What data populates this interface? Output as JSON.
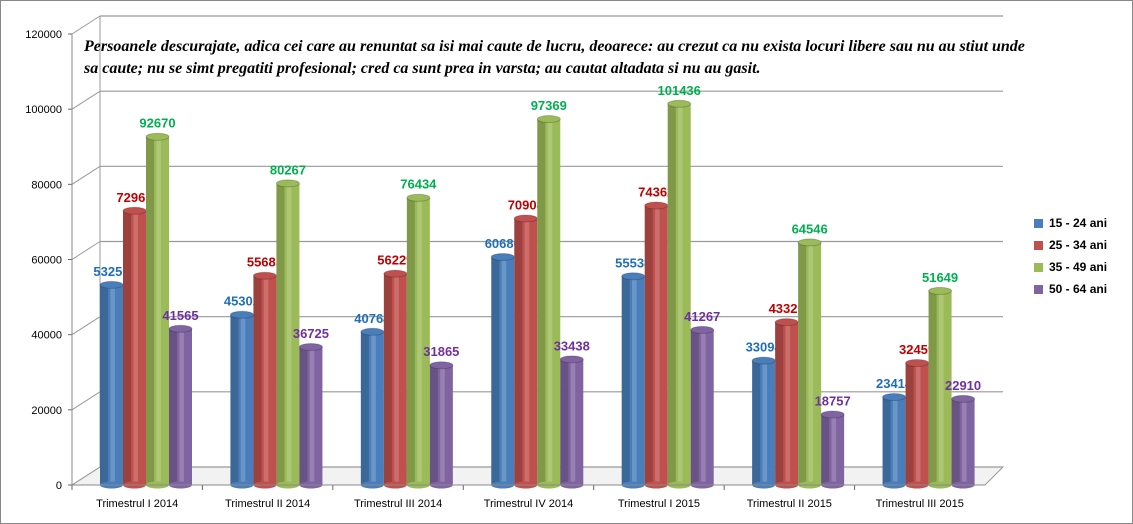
{
  "chart_data": {
    "type": "bar",
    "title": "Persoanele descurajate, adica cei care au renuntat sa isi mai caute de lucru, deoarece: au crezut ca nu exista locuri libere sau nu au stiut unde sa caute; nu se simt pregatiti profesional; cred ca sunt prea in varsta; au cautat altadata si nu au gasit.",
    "categories": [
      "Trimestrul I 2014",
      "Trimestrul II 2014",
      "Trimestrul III 2014",
      "Trimestrul IV 2014",
      "Trimestrul I 2015",
      "Trimestrul II 2015",
      "Trimestrul III 2015"
    ],
    "series": [
      {
        "name": "15 - 24 ani",
        "color": "#4a7ebb",
        "label_color": "#1f6fb8",
        "values": [
          53255,
          45302,
          40764,
          60680,
          55538,
          33094,
          23414
        ]
      },
      {
        "name": "25 - 34 ani",
        "color": "#c0504d",
        "label_color": "#c00000",
        "values": [
          72967,
          55685,
          56229,
          70908,
          74362,
          43325,
          32459
        ]
      },
      {
        "name": "35 - 49 ani",
        "color": "#9bbb59",
        "label_color": "#00b050",
        "values": [
          92670,
          80267,
          76434,
          97369,
          101436,
          64546,
          51649
        ]
      },
      {
        "name": "50 - 64 ani",
        "color": "#8064a2",
        "label_color": "#7030a0",
        "values": [
          41565,
          36725,
          31865,
          33438,
          41267,
          18757,
          22910
        ]
      }
    ],
    "yticks": [
      "0",
      "20000",
      "40000",
      "60000",
      "80000",
      "100000",
      "120000"
    ],
    "ylim": [
      0,
      120000
    ],
    "grid": true,
    "legend": "right"
  }
}
